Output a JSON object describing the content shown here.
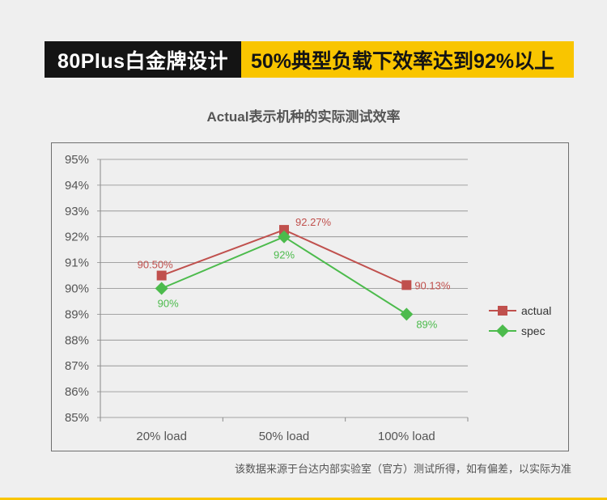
{
  "banner": {
    "left_text": "80Plus白金牌设计",
    "right_text": "50%典型负载下效率达到92%以上",
    "left_bg": "#141414",
    "right_bg": "#f9c500"
  },
  "footnote": "该数据来源于台达内部实验室（官方）测试所得，如有偏差，以实际为准",
  "chart_data": {
    "type": "line",
    "title": "Actual表示机种的实际测试效率",
    "categories": [
      "20% load",
      "50% load",
      "100% load"
    ],
    "y_ticks": [
      "85%",
      "86%",
      "87%",
      "88%",
      "89%",
      "90%",
      "91%",
      "92%",
      "93%",
      "94%",
      "95%"
    ],
    "ylim": [
      85,
      95
    ],
    "grid": true,
    "legend_position": "right",
    "series": [
      {
        "name": "actual",
        "values": [
          90.5,
          92.27,
          90.13
        ],
        "labels": [
          "90.50%",
          "92.27%",
          "90.13%"
        ],
        "color": "#c0504d",
        "marker": "square"
      },
      {
        "name": "spec",
        "values": [
          90,
          92,
          89
        ],
        "labels": [
          "90%",
          "92%",
          "89%"
        ],
        "color": "#4cbb4c",
        "marker": "diamond"
      }
    ]
  }
}
